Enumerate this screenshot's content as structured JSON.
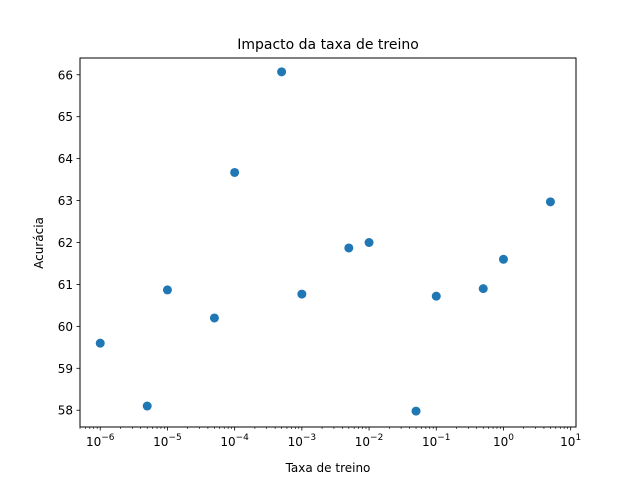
{
  "chart_data": {
    "type": "scatter",
    "title": "Impacto da taxa de treino",
    "xlabel": "Taxa de treino",
    "ylabel": "Acurácia",
    "xscale": "log",
    "xlim": [
      5e-07,
      12.0
    ],
    "ylim": [
      57.6,
      66.4
    ],
    "grid": false,
    "x_ticks": [
      {
        "value": 1e-06,
        "exp": "−6"
      },
      {
        "value": 1e-05,
        "exp": "−5"
      },
      {
        "value": 0.0001,
        "exp": "−4"
      },
      {
        "value": 0.001,
        "exp": "−3"
      },
      {
        "value": 0.01,
        "exp": "−2"
      },
      {
        "value": 0.1,
        "exp": "−1"
      },
      {
        "value": 1.0,
        "exp": "0"
      },
      {
        "value": 10.0,
        "exp": "1"
      }
    ],
    "y_ticks": [
      58,
      59,
      60,
      61,
      62,
      63,
      64,
      65,
      66
    ],
    "marker_color": "#1f77b4",
    "points": [
      {
        "x": 1e-06,
        "y": 59.6
      },
      {
        "x": 5e-06,
        "y": 58.1
      },
      {
        "x": 1e-05,
        "y": 60.87
      },
      {
        "x": 5e-05,
        "y": 60.2
      },
      {
        "x": 0.0001,
        "y": 63.67
      },
      {
        "x": 0.0005,
        "y": 66.07
      },
      {
        "x": 0.001,
        "y": 60.77
      },
      {
        "x": 0.005,
        "y": 61.87
      },
      {
        "x": 0.01,
        "y": 62.0
      },
      {
        "x": 0.05,
        "y": 57.98
      },
      {
        "x": 0.1,
        "y": 60.72
      },
      {
        "x": 0.5,
        "y": 60.9
      },
      {
        "x": 1.0,
        "y": 61.6
      },
      {
        "x": 5.0,
        "y": 62.97
      }
    ]
  }
}
